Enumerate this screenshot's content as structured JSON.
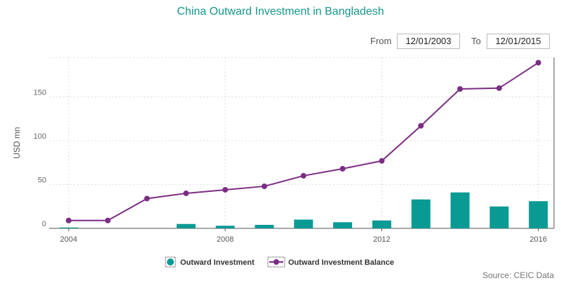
{
  "range_selector": {
    "from_label": "From",
    "from_value": "12/01/2003",
    "to_label": "To",
    "to_value": "12/01/2015"
  },
  "source": "Source: CEIC Data",
  "colors": {
    "title": "#17968d",
    "bar": "#0a9a94",
    "line": "#7b2d83"
  },
  "chart_data": {
    "type": "bar",
    "title": "China Outward Investment in Bangladesh",
    "xlabel": "",
    "ylabel": "USD mn",
    "ylim": [
      0,
      195
    ],
    "yticks": [
      0,
      50,
      100,
      150
    ],
    "xticks": [
      2004,
      2008,
      2012,
      2016
    ],
    "xlim": [
      2003.5,
      2016.4
    ],
    "grid": true,
    "legend_position": "bottom",
    "x": [
      2004,
      2005,
      2006,
      2007,
      2008,
      2009,
      2010,
      2011,
      2012,
      2013,
      2014,
      2015,
      2016
    ],
    "series": [
      {
        "name": "Outward Investment",
        "type": "bar",
        "values": [
          1,
          0,
          0,
          5,
          3,
          4,
          10,
          7,
          9,
          33,
          41,
          25,
          31
        ]
      },
      {
        "name": "Outward Investment Balance",
        "type": "line",
        "values": [
          9,
          9,
          34,
          40,
          44,
          48,
          60,
          68,
          77,
          117,
          159,
          160,
          189
        ]
      }
    ]
  }
}
